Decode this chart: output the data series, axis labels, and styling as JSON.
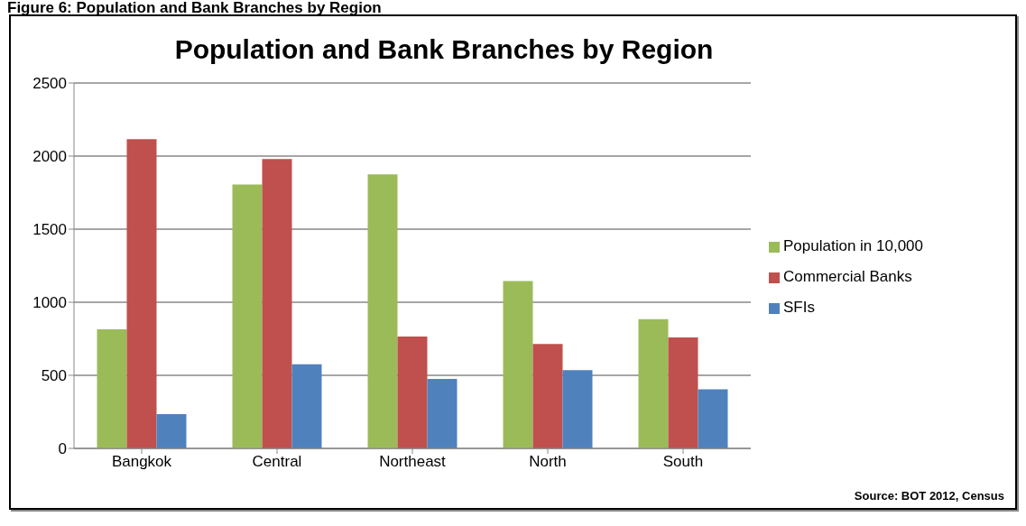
{
  "chart_data": {
    "type": "bar",
    "title": "Population and Bank Branches by Region",
    "categories": [
      "Bangkok",
      "Central",
      "Northeast",
      "North",
      "South"
    ],
    "series": [
      {
        "name": "Population in 10,000",
        "color": "#9bbb59",
        "values": [
          815,
          1805,
          1875,
          1145,
          885
        ]
      },
      {
        "name": "Commercial Banks",
        "color": "#c0504d",
        "values": [
          2115,
          1980,
          765,
          715,
          760
        ]
      },
      {
        "name": "SFIs",
        "color": "#4f81bd",
        "values": [
          235,
          575,
          475,
          535,
          405
        ]
      }
    ],
    "ylim": [
      0,
      2500
    ],
    "yticks": [
      0,
      500,
      1000,
      1500,
      2000,
      2500
    ],
    "grid": "y",
    "legend": "right",
    "annotations": [
      "Figure 6: Population and Bank Branches by Region",
      "Source: BOT 2012, Census"
    ]
  }
}
